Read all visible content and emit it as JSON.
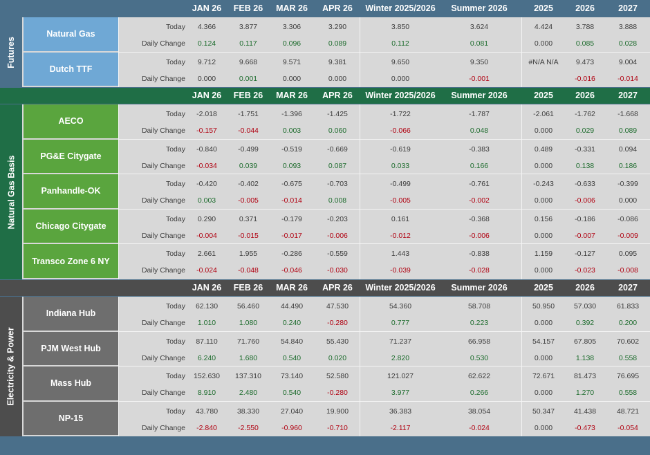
{
  "columns": [
    "JAN 26",
    "FEB 26",
    "MAR 26",
    "APR 26",
    "Winter 2025/2026",
    "Summer 2026",
    "2025",
    "2026",
    "2027"
  ],
  "labels": {
    "today": "Today",
    "change": "Daily Change"
  },
  "colors": {
    "futures_header": "#4a6f8a",
    "futures_instrument": "#6fa8d5",
    "basis_header": "#1f6e46",
    "basis_instrument": "#5aa53e",
    "power_header": "#4d4d4d",
    "power_instrument": "#6e6e6e",
    "positive": "#1c6b2c",
    "negative": "#b00010"
  },
  "sections": [
    {
      "name": "Futures",
      "key": "futures",
      "rows": [
        {
          "name": "Natural Gas",
          "today": [
            "4.366",
            "3.877",
            "3.306",
            "3.290",
            "3.850",
            "3.624",
            "4.424",
            "3.788",
            "3.888"
          ],
          "change": [
            "0.124",
            "0.117",
            "0.096",
            "0.089",
            "0.112",
            "0.081",
            "0.000",
            "0.085",
            "0.028"
          ]
        },
        {
          "name": "Dutch TTF",
          "today": [
            "9.712",
            "9.668",
            "9.571",
            "9.381",
            "9.650",
            "9.350",
            "#N/A N/A",
            "9.473",
            "9.004"
          ],
          "change": [
            "0.000",
            "0.001",
            "0.000",
            "0.000",
            "0.000",
            "-0.001",
            "",
            "-0.016",
            "-0.014"
          ]
        }
      ]
    },
    {
      "name": "Natural Gas Basis",
      "key": "basis",
      "rows": [
        {
          "name": "AECO",
          "today": [
            "-2.018",
            "-1.751",
            "-1.396",
            "-1.425",
            "-1.722",
            "-1.787",
            "-2.061",
            "-1.762",
            "-1.668"
          ],
          "change": [
            "-0.157",
            "-0.044",
            "0.003",
            "0.060",
            "-0.066",
            "0.048",
            "0.000",
            "0.029",
            "0.089"
          ]
        },
        {
          "name": "PG&E Citygate",
          "today": [
            "-0.840",
            "-0.499",
            "-0.519",
            "-0.669",
            "-0.619",
            "-0.383",
            "0.489",
            "-0.331",
            "0.094"
          ],
          "change": [
            "-0.034",
            "0.039",
            "0.093",
            "0.087",
            "0.033",
            "0.166",
            "0.000",
            "0.138",
            "0.186"
          ]
        },
        {
          "name": "Panhandle-OK",
          "today": [
            "-0.420",
            "-0.402",
            "-0.675",
            "-0.703",
            "-0.499",
            "-0.761",
            "-0.243",
            "-0.633",
            "-0.399"
          ],
          "change": [
            "0.003",
            "-0.005",
            "-0.014",
            "0.008",
            "-0.005",
            "-0.002",
            "0.000",
            "-0.006",
            "0.000"
          ]
        },
        {
          "name": "Chicago Citygate",
          "today": [
            "0.290",
            "0.371",
            "-0.179",
            "-0.203",
            "0.161",
            "-0.368",
            "0.156",
            "-0.186",
            "-0.086"
          ],
          "change": [
            "-0.004",
            "-0.015",
            "-0.017",
            "-0.006",
            "-0.012",
            "-0.006",
            "0.000",
            "-0.007",
            "-0.009"
          ]
        },
        {
          "name": "Transco Zone 6 NY",
          "today": [
            "2.661",
            "1.955",
            "-0.286",
            "-0.559",
            "1.443",
            "-0.838",
            "1.159",
            "-0.127",
            "0.095"
          ],
          "change": [
            "-0.024",
            "-0.048",
            "-0.046",
            "-0.030",
            "-0.039",
            "-0.028",
            "0.000",
            "-0.023",
            "-0.008"
          ]
        }
      ]
    },
    {
      "name": "Electricity & Power",
      "key": "power",
      "rows": [
        {
          "name": "Indiana Hub",
          "today": [
            "62.130",
            "56.460",
            "44.490",
            "47.530",
            "54.360",
            "58.708",
            "50.950",
            "57.030",
            "61.833"
          ],
          "change": [
            "1.010",
            "1.080",
            "0.240",
            "-0.280",
            "0.777",
            "0.223",
            "0.000",
            "0.392",
            "0.200"
          ]
        },
        {
          "name": "PJM West Hub",
          "today": [
            "87.110",
            "71.760",
            "54.840",
            "55.430",
            "71.237",
            "66.958",
            "54.157",
            "67.805",
            "70.602"
          ],
          "change": [
            "6.240",
            "1.680",
            "0.540",
            "0.020",
            "2.820",
            "0.530",
            "0.000",
            "1.138",
            "0.558"
          ]
        },
        {
          "name": "Mass Hub",
          "today": [
            "152.630",
            "137.310",
            "73.140",
            "52.580",
            "121.027",
            "62.622",
            "72.671",
            "81.473",
            "76.695"
          ],
          "change": [
            "8.910",
            "2.480",
            "0.540",
            "-0.280",
            "3.977",
            "0.266",
            "0.000",
            "1.270",
            "0.558"
          ]
        },
        {
          "name": "NP-15",
          "today": [
            "43.780",
            "38.330",
            "27.040",
            "19.900",
            "36.383",
            "38.054",
            "50.347",
            "41.438",
            "48.721"
          ],
          "change": [
            "-2.840",
            "-2.550",
            "-0.960",
            "-0.710",
            "-2.117",
            "-0.024",
            "0.000",
            "-0.473",
            "-0.054"
          ]
        }
      ]
    }
  ]
}
